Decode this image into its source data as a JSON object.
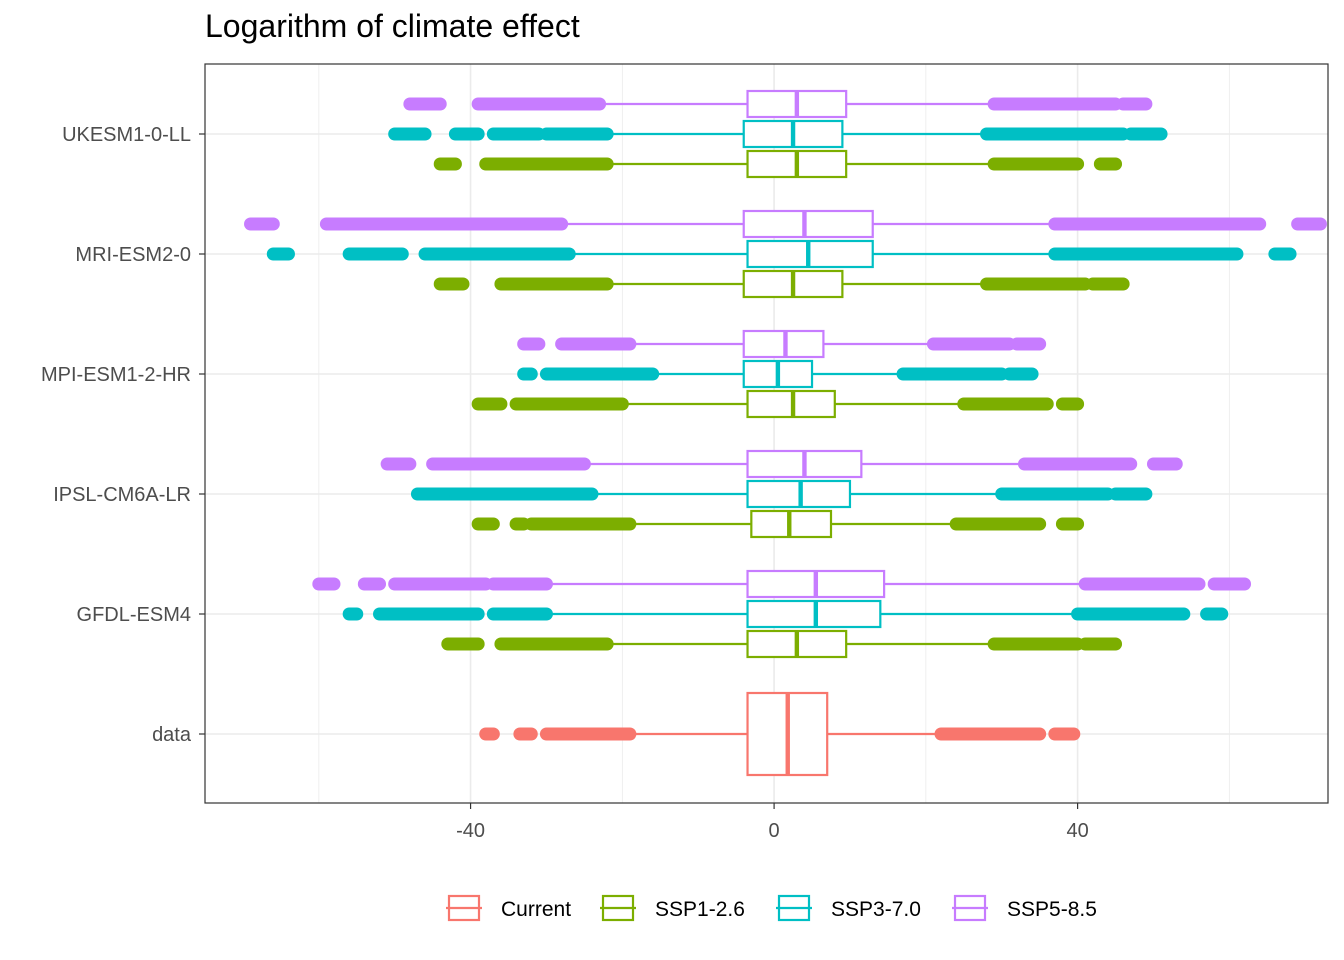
{
  "chart_data": {
    "type": "boxplot",
    "title": "Logarithm of climate effect",
    "xlabel": "",
    "ylabel": "",
    "xlim": [
      -75,
      73
    ],
    "x_ticks": [
      -40,
      0,
      40
    ],
    "x_tick_labels": [
      "-40",
      "0",
      "40"
    ],
    "grid": true,
    "legend_position": "bottom",
    "categories": [
      "data",
      "GFDL-ESM4",
      "IPSL-CM6A-LR",
      "MPI-ESM1-2-HR",
      "MRI-ESM2-0",
      "UKESM1-0-LL"
    ],
    "series": [
      {
        "name": "Current",
        "color": "#F8766D"
      },
      {
        "name": "SSP1-2.6",
        "color": "#7CAE00"
      },
      {
        "name": "SSP3-7.0",
        "color": "#00BFC4"
      },
      {
        "name": "SSP5-8.5",
        "color": "#C77CFF"
      }
    ],
    "boxes": [
      {
        "category": "data",
        "series": "Current",
        "whisker_low": -19,
        "q1": -3.5,
        "median": 1.8,
        "q3": 7,
        "whisker_high": 22,
        "outliers_low": [
          [
            -38,
            -37
          ],
          [
            -33.5,
            -32
          ],
          [
            -30,
            -19
          ]
        ],
        "outliers_high": [
          [
            22,
            35
          ],
          [
            37,
            39.5
          ]
        ]
      },
      {
        "category": "GFDL-ESM4",
        "series": "SSP1-2.6",
        "whisker_low": -22,
        "q1": -3.5,
        "median": 3,
        "q3": 9.5,
        "whisker_high": 29,
        "outliers_low": [
          [
            -43,
            -39
          ],
          [
            -36,
            -22
          ]
        ],
        "outliers_high": [
          [
            29,
            40
          ],
          [
            41,
            45
          ]
        ]
      },
      {
        "category": "GFDL-ESM4",
        "series": "SSP3-7.0",
        "whisker_low": -30,
        "q1": -3.5,
        "median": 5.5,
        "q3": 14,
        "whisker_high": 40,
        "outliers_low": [
          [
            -56,
            -55
          ],
          [
            -52,
            -39
          ],
          [
            -37,
            -30
          ]
        ],
        "outliers_high": [
          [
            40,
            54
          ],
          [
            57,
            59
          ]
        ]
      },
      {
        "category": "GFDL-ESM4",
        "series": "SSP5-8.5",
        "whisker_low": -30,
        "q1": -3.5,
        "median": 5.5,
        "q3": 14.5,
        "whisker_high": 41,
        "outliers_low": [
          [
            -60,
            -58
          ],
          [
            -54,
            -52
          ],
          [
            -50,
            -38
          ],
          [
            -37,
            -30
          ]
        ],
        "outliers_high": [
          [
            41,
            56
          ],
          [
            58,
            62
          ]
        ]
      },
      {
        "category": "IPSL-CM6A-LR",
        "series": "SSP1-2.6",
        "whisker_low": -19,
        "q1": -3,
        "median": 2,
        "q3": 7.5,
        "whisker_high": 24,
        "outliers_low": [
          [
            -39,
            -37
          ],
          [
            -34,
            -33
          ],
          [
            -32,
            -19
          ]
        ],
        "outliers_high": [
          [
            24,
            35
          ],
          [
            38,
            40
          ]
        ]
      },
      {
        "category": "IPSL-CM6A-LR",
        "series": "SSP3-7.0",
        "whisker_low": -24,
        "q1": -3.5,
        "median": 3.5,
        "q3": 10,
        "whisker_high": 30,
        "outliers_low": [
          [
            -47,
            -42
          ],
          [
            -42,
            -24
          ]
        ],
        "outliers_high": [
          [
            30,
            44
          ],
          [
            45,
            49
          ]
        ]
      },
      {
        "category": "IPSL-CM6A-LR",
        "series": "SSP5-8.5",
        "whisker_low": -25,
        "q1": -3.5,
        "median": 4,
        "q3": 11.5,
        "whisker_high": 33,
        "outliers_low": [
          [
            -51,
            -48
          ],
          [
            -45,
            -25
          ]
        ],
        "outliers_high": [
          [
            33,
            47
          ],
          [
            50,
            53
          ]
        ]
      },
      {
        "category": "MPI-ESM1-2-HR",
        "series": "SSP1-2.6",
        "whisker_low": -20,
        "q1": -3.5,
        "median": 2.5,
        "q3": 8,
        "whisker_high": 25,
        "outliers_low": [
          [
            -39,
            -36
          ],
          [
            -34,
            -20
          ]
        ],
        "outliers_high": [
          [
            25,
            36
          ],
          [
            38,
            40
          ]
        ]
      },
      {
        "category": "MPI-ESM1-2-HR",
        "series": "SSP3-7.0",
        "whisker_low": -16,
        "q1": -4,
        "median": 0.5,
        "q3": 5,
        "whisker_high": 17,
        "outliers_low": [
          [
            -33,
            -32
          ],
          [
            -30,
            -16
          ]
        ],
        "outliers_high": [
          [
            17,
            30
          ],
          [
            31,
            34
          ]
        ]
      },
      {
        "category": "MPI-ESM1-2-HR",
        "series": "SSP5-8.5",
        "whisker_low": -19,
        "q1": -4,
        "median": 1.5,
        "q3": 6.5,
        "whisker_high": 21,
        "outliers_low": [
          [
            -33,
            -31
          ],
          [
            -28,
            -19
          ]
        ],
        "outliers_high": [
          [
            21,
            31
          ],
          [
            32,
            35
          ]
        ]
      },
      {
        "category": "MRI-ESM2-0",
        "series": "SSP1-2.6",
        "whisker_low": -22,
        "q1": -4,
        "median": 2.5,
        "q3": 9,
        "whisker_high": 28,
        "outliers_low": [
          [
            -44,
            -41
          ],
          [
            -36,
            -22
          ]
        ],
        "outliers_high": [
          [
            28,
            41
          ],
          [
            42,
            46
          ]
        ]
      },
      {
        "category": "MRI-ESM2-0",
        "series": "SSP3-7.0",
        "whisker_low": -27,
        "q1": -3.5,
        "median": 4.5,
        "q3": 13,
        "whisker_high": 37,
        "outliers_low": [
          [
            -66,
            -64
          ],
          [
            -56,
            -49
          ],
          [
            -46,
            -27
          ]
        ],
        "outliers_high": [
          [
            37,
            61
          ],
          [
            66,
            68
          ]
        ]
      },
      {
        "category": "MRI-ESM2-0",
        "series": "SSP5-8.5",
        "whisker_low": -28,
        "q1": -4,
        "median": 4,
        "q3": 13,
        "whisker_high": 37,
        "outliers_low": [
          [
            -69,
            -66
          ],
          [
            -59,
            -42
          ],
          [
            -42,
            -28
          ]
        ],
        "outliers_high": [
          [
            37,
            64
          ],
          [
            69,
            72
          ]
        ]
      },
      {
        "category": "UKESM1-0-LL",
        "series": "SSP1-2.6",
        "whisker_low": -22,
        "q1": -3.5,
        "median": 3,
        "q3": 9.5,
        "whisker_high": 29,
        "outliers_low": [
          [
            -44,
            -42
          ],
          [
            -38,
            -22
          ]
        ],
        "outliers_high": [
          [
            29,
            40
          ],
          [
            43,
            45
          ]
        ]
      },
      {
        "category": "UKESM1-0-LL",
        "series": "SSP3-7.0",
        "whisker_low": -22,
        "q1": -4,
        "median": 2.5,
        "q3": 9,
        "whisker_high": 28,
        "outliers_low": [
          [
            -50,
            -46
          ],
          [
            -42,
            -39
          ],
          [
            -37,
            -31
          ],
          [
            -30,
            -22
          ]
        ],
        "outliers_high": [
          [
            28,
            46
          ],
          [
            47,
            51
          ]
        ]
      },
      {
        "category": "UKESM1-0-LL",
        "series": "SSP5-8.5",
        "whisker_low": -23,
        "q1": -3.5,
        "median": 3,
        "q3": 9.5,
        "whisker_high": 29,
        "outliers_low": [
          [
            -48,
            -44
          ],
          [
            -39,
            -23
          ]
        ],
        "outliers_high": [
          [
            29,
            45
          ],
          [
            46,
            49
          ]
        ]
      }
    ]
  }
}
